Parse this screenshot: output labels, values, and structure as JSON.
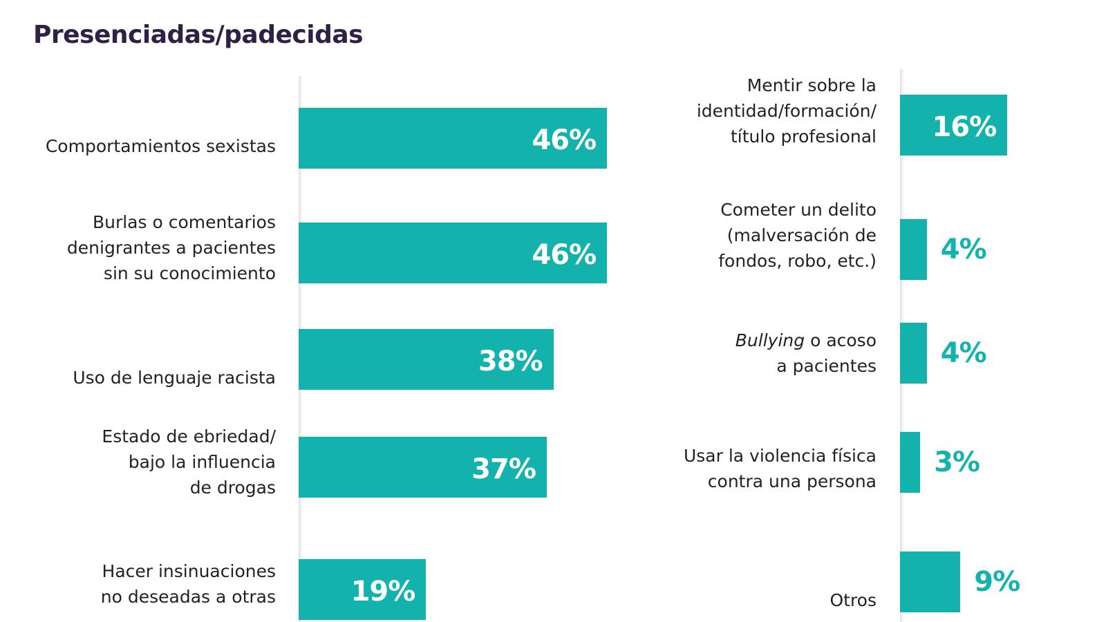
{
  "chart_data": [
    {
      "type": "bar",
      "orientation": "horizontal",
      "title": "Presenciadas/padecidas",
      "categories": [
        "Comportamientos sexistas",
        "Burlas o comentarios\ndenigrantes a pacientes\nsin su conocimiento",
        "Uso de lenguaje racista",
        "Estado de ebriedad/\nbajo la influencia\nde drogas",
        "Hacer insinuaciones\nno deseadas a otras"
      ],
      "values": [
        46,
        46,
        38,
        37,
        19
      ],
      "labels": [
        "46%",
        "46%",
        "38%",
        "37%",
        "19%"
      ],
      "unit": "%",
      "xlim": [
        0,
        50
      ],
      "grid": false
    },
    {
      "type": "bar",
      "orientation": "horizontal",
      "categories": [
        "Mentir sobre la\nidentidad/formación/\ntítulo profesional",
        "Cometer un delito\n(malversación de\nfondos, robo, etc.)",
        "Bullying o acoso\na pacientes",
        "Usar la violencia física\ncontra una persona",
        "Otros"
      ],
      "values": [
        16,
        4,
        4,
        3,
        9
      ],
      "labels": [
        "16%",
        "4%",
        "4%",
        "3%",
        "9%"
      ],
      "unit": "%",
      "xlim": [
        0,
        30
      ],
      "grid": false
    }
  ],
  "colors": {
    "bar": "#14b2ad",
    "title": "#2e2145",
    "text": "#222222"
  }
}
